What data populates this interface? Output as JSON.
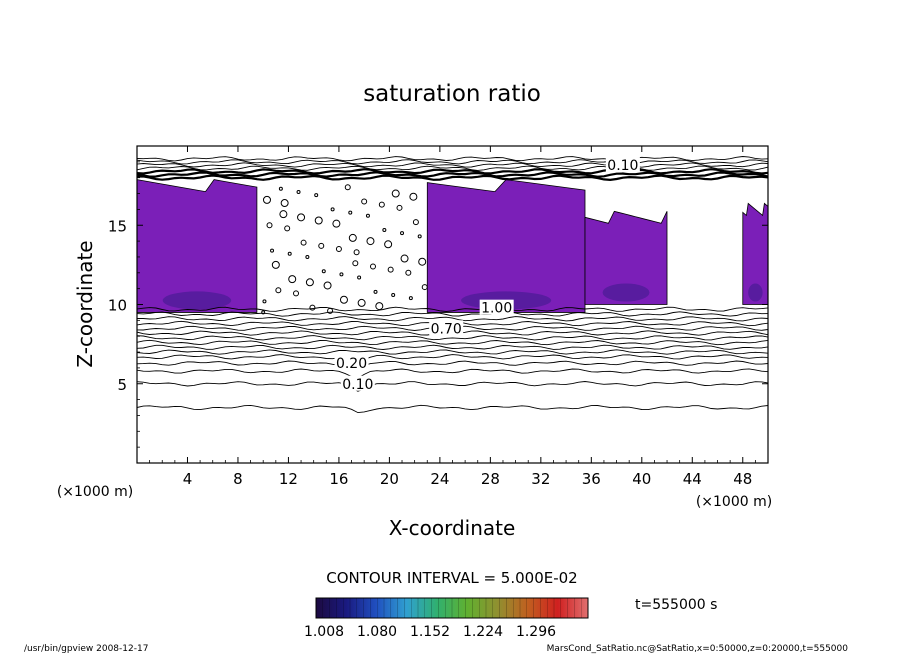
{
  "chart_data": {
    "type": "heatmap",
    "title": "saturation ratio",
    "xlabel": "X-coordinate",
    "ylabel": "Z-coordinate",
    "x_unit": "(×1000 m)",
    "xlim": [
      0,
      50
    ],
    "ylim": [
      0,
      20
    ],
    "x_ticks": [
      4,
      8,
      12,
      16,
      20,
      24,
      28,
      32,
      36,
      40,
      44,
      48
    ],
    "y_ticks": [
      5,
      10,
      15
    ],
    "contour_interval_text": "CONTOUR INTERVAL = 5.000E-02",
    "contour_labels": [
      {
        "text": "0.10",
        "x": 17.5,
        "z": 5.0
      },
      {
        "text": "0.20",
        "x": 17.0,
        "z": 6.3
      },
      {
        "text": "0.10",
        "x": 38.5,
        "z": 18.8
      },
      {
        "text": "0.70",
        "x": 24.5,
        "z": 8.5
      },
      {
        "text": "1.00",
        "x": 28.5,
        "z": 9.8
      }
    ],
    "supersaturated_regions": [
      {
        "x_range": [
          0,
          9.5
        ],
        "z_range": [
          9.5,
          17.5
        ]
      },
      {
        "x_range": [
          23,
          35.5
        ],
        "z_range": [
          9.5,
          17.5
        ]
      },
      {
        "x_range": [
          35.5,
          42
        ],
        "z_range": [
          10,
          15.5
        ]
      },
      {
        "x_range": [
          48,
          50
        ],
        "z_range": [
          10,
          16
        ]
      }
    ],
    "colorbar": {
      "ticks": [
        "1.008",
        "1.080",
        "1.152",
        "1.224",
        "1.296"
      ],
      "colors": [
        "#1c0a40",
        "#1a1a80",
        "#2050c0",
        "#30a0d0",
        "#30b070",
        "#60b030",
        "#909030",
        "#c06020",
        "#d02020",
        "#e07070"
      ]
    },
    "time_label": "t=555000 s"
  },
  "footer": {
    "left": "/usr/bin/gpview   2008-12-17",
    "right": "MarsCond_SatRatio.nc@SatRatio,x=0:50000,z=0:20000,t=555000"
  },
  "colors": {
    "region_fill": "#7b1fb8",
    "region_dark": "#3d1a8a",
    "contour": "#000000"
  }
}
